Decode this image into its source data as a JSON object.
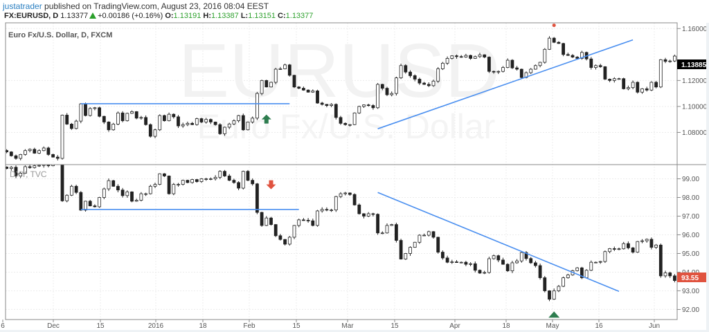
{
  "header": {
    "user": "justatrader",
    "published": "published on TradingView.com, August 23, 2016 08:04 EEST",
    "symbol": "FX:EURUSD, D",
    "last": "1.13377",
    "change": "+0.00186 (+0.16%)",
    "o_label": "O:",
    "o": "1.13191",
    "h_label": "H:",
    "h": "1.13387",
    "l_label": "L:",
    "l": "1.13151",
    "c_label": "C:",
    "c": "1.13377"
  },
  "colors": {
    "up_value": "#2ca02c",
    "trendline": "#4a8ff0",
    "last_price_upper": "#000000",
    "last_price_lower": "#e0533f",
    "arrow_up": "#2e7d4f",
    "arrow_down": "#e0533f"
  },
  "chart_data": [
    {
      "type": "candlestick",
      "title": "Euro Fx/U.S. Dollar, D, FXCM",
      "watermark": "EURUSD",
      "watermark_sub": "Euro Fx/U.S. Dollar",
      "y_ticks": [
        "1.16000",
        "1.12000",
        "1.10000",
        "1.08000"
      ],
      "ylim": [
        1.0552,
        1.1644
      ],
      "last_price_label": "1.13885",
      "closes": [
        1.065,
        1.062,
        1.06,
        1.063,
        1.066,
        1.067,
        1.064,
        1.066,
        1.068,
        1.063,
        1.061,
        1.06,
        1.0933,
        1.0864,
        1.083,
        1.0887,
        1.102,
        1.093,
        1.0984,
        1.099,
        1.0924,
        1.088,
        1.082,
        1.0864,
        1.095,
        1.089,
        1.0947,
        1.096,
        1.091,
        1.0915,
        1.086,
        1.077,
        1.082,
        1.093,
        1.089,
        1.094,
        1.092,
        1.085,
        1.086,
        1.087,
        1.086,
        1.0906,
        1.088,
        1.09,
        1.088,
        1.086,
        1.079,
        1.084,
        1.0865,
        1.089,
        1.093,
        1.082,
        1.088,
        1.091,
        1.11,
        1.12,
        1.115,
        1.1186,
        1.1287,
        1.129,
        1.132,
        1.124,
        1.115,
        1.114,
        1.1126,
        1.111,
        1.112,
        1.1026,
        1.1016,
        1.1007,
        1.1016,
        1.0915,
        1.087,
        1.086,
        1.086,
        1.095,
        1.1,
        1.1012,
        1.1007,
        1.099,
        1.117,
        1.114,
        1.109,
        1.11,
        1.122,
        1.1315,
        1.1265,
        1.1237,
        1.121,
        1.118,
        1.117,
        1.116,
        1.1195,
        1.129,
        1.1333,
        1.137,
        1.139,
        1.1384,
        1.138,
        1.1393,
        1.137,
        1.1384,
        1.1398,
        1.138,
        1.127,
        1.1265,
        1.127,
        1.13,
        1.1356,
        1.1297,
        1.1287,
        1.1223,
        1.126,
        1.1287,
        1.1315,
        1.134,
        1.144,
        1.1526,
        1.1494,
        1.1485,
        1.14,
        1.1393,
        1.138,
        1.137,
        1.1416,
        1.1366,
        1.13,
        1.1315,
        1.1306,
        1.121,
        1.12,
        1.1214,
        1.1214,
        1.1136,
        1.1145,
        1.1186,
        1.111,
        1.1136,
        1.1126,
        1.1186,
        1.115,
        1.136,
        1.1347,
        1.135,
        1.1388
      ],
      "trendlines": [
        {
          "from": [
            16,
            1.1021
          ],
          "to": [
            61,
            1.1021
          ]
        },
        {
          "from": [
            80,
            1.0828
          ],
          "to": [
            135,
            1.1513
          ]
        }
      ],
      "markers": [
        {
          "kind": "arrow-up",
          "index": 56,
          "price": 1.09
        },
        {
          "kind": "dot",
          "index": 118,
          "price": 1.1625
        }
      ]
    },
    {
      "type": "candlestick",
      "title": "DXY, TVC",
      "y_ticks": [
        "99.00",
        "98.00",
        "97.00",
        "96.00",
        "95.00",
        "94.00",
        "93.00",
        "92.00"
      ],
      "ylim": [
        91.46,
        99.76
      ],
      "last_price_label": "93.55",
      "closes": [
        99.55,
        99.62,
        99.15,
        99.3,
        99.65,
        99.6,
        99.7,
        99.72,
        99.75,
        99.7,
        99.78,
        99.85,
        97.82,
        98.12,
        98.6,
        98.27,
        97.32,
        97.8,
        97.55,
        97.5,
        98.0,
        98.46,
        98.9,
        98.6,
        98.4,
        98.1,
        98.3,
        97.8,
        97.85,
        98.2,
        98.2,
        98.6,
        98.7,
        99.27,
        99.15,
        98.2,
        98.7,
        98.7,
        98.92,
        98.8,
        98.96,
        98.85,
        99.0,
        99.0,
        99.0,
        99.08,
        99.4,
        99.15,
        98.92,
        98.8,
        98.5,
        99.4,
        98.92,
        98.73,
        97.2,
        96.5,
        96.9,
        96.55,
        95.95,
        95.75,
        95.5,
        95.87,
        96.5,
        96.8,
        96.78,
        96.75,
        96.5,
        97.28,
        97.36,
        97.33,
        97.33,
        98.05,
        98.2,
        98.24,
        98.16,
        97.6,
        97.13,
        97.0,
        97.13,
        97.1,
        96.1,
        96.1,
        96.5,
        96.55,
        95.7,
        94.7,
        95.0,
        95.33,
        95.6,
        95.98,
        95.98,
        96.17,
        95.87,
        95.07,
        94.76,
        94.53,
        94.55,
        94.53,
        94.53,
        94.42,
        94.45,
        94.1,
        93.95,
        93.98,
        94.72,
        94.88,
        94.65,
        94.42,
        94.07,
        94.5,
        94.6,
        95.05,
        94.73,
        94.5,
        94.35,
        93.7,
        93.0,
        92.55,
        93.0,
        93.24,
        93.7,
        93.85,
        94.08,
        94.23,
        93.7,
        94.1,
        94.53,
        94.53,
        94.57,
        95.1,
        95.26,
        95.25,
        95.25,
        95.53,
        95.3,
        95.07,
        95.64,
        95.68,
        95.76,
        95.33,
        95.45,
        93.8,
        93.96,
        93.8,
        93.55
      ],
      "trendlines": [
        {
          "from": [
            16,
            97.36
          ],
          "to": [
            63,
            97.36
          ]
        },
        {
          "from": [
            80,
            98.27
          ],
          "to": [
            132,
            92.97
          ]
        }
      ],
      "markers": [
        {
          "kind": "arrow-down",
          "index": 57,
          "price": 98.7
        },
        {
          "kind": "triangle-up",
          "index": 118,
          "price": 91.6
        }
      ]
    }
  ],
  "x_ticks": [
    "6",
    "Dec",
    "15",
    "2016",
    "18",
    "Feb",
    "15",
    "Mar",
    "15",
    "Apr",
    "18",
    "May",
    "16",
    "Jun"
  ]
}
